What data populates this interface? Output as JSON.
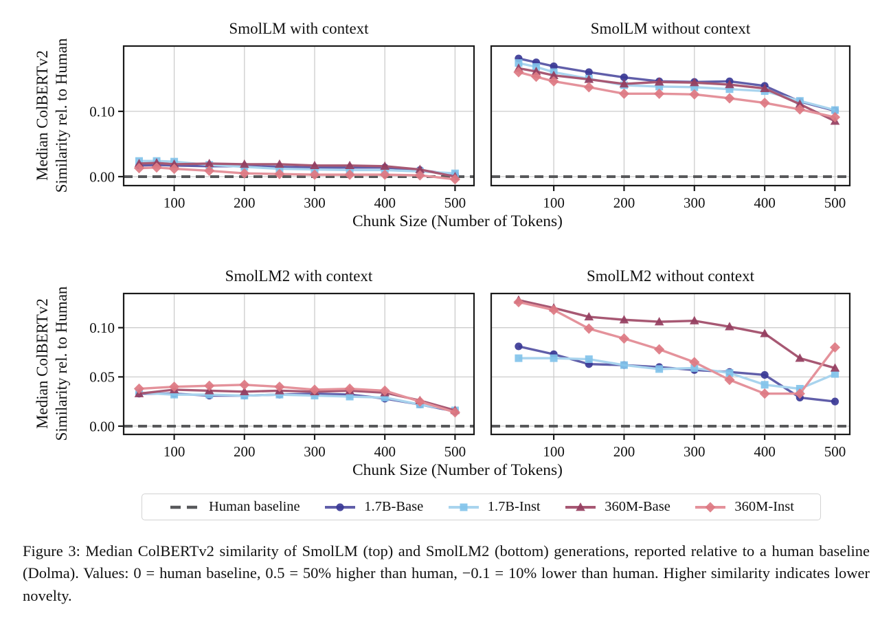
{
  "figure": {
    "caption": "Figure 3: Median ColBERTv2 similarity of SmolLM (top) and SmolLM2 (bottom) generations, reported relative to a human baseline (Dolma). Values: 0 = human baseline, 0.5 = 50% higher than human, −0.1 = 10% lower than human. Higher similarity indicates lower novelty."
  },
  "axes": {
    "ylabel_line1": "Median ColBERTv2",
    "ylabel_line2": "Similarity rel. to Human",
    "xlabel": "Chunk Size (Number of Tokens)"
  },
  "legend": {
    "items": [
      "Human baseline",
      "1.7B-Base",
      "1.7B-Inst",
      "360M-Base",
      "360M-Inst"
    ]
  },
  "styles": {
    "grid_color": "#cccccc",
    "border_color": "#1a1a1a",
    "baseline": {
      "color": "#58595b",
      "dash": "13 8",
      "width": 4
    },
    "series": {
      "1.7B-Base": {
        "line": "#605ea9",
        "marker_fill": "#3b3a96",
        "marker": "circle"
      },
      "1.7B-Inst": {
        "line": "#a9d4ee",
        "marker_fill": "#82c3ea",
        "marker": "square"
      },
      "360M-Base": {
        "line": "#a75873",
        "marker_fill": "#953e60",
        "marker": "triangle"
      },
      "360M-Inst": {
        "line": "#e4929b",
        "marker_fill": "#dd7983",
        "marker": "diamond"
      }
    }
  },
  "chart_data": [
    {
      "type": "line",
      "title": "SmolLM with context",
      "x": [
        50,
        75,
        100,
        150,
        200,
        250,
        300,
        350,
        400,
        450,
        500
      ],
      "series": [
        {
          "name": "1.7B-Base",
          "values": [
            0.017,
            0.018,
            0.017,
            0.016,
            0.016,
            0.015,
            0.014,
            0.014,
            0.014,
            0.01,
            0.003
          ]
        },
        {
          "name": "1.7B-Inst",
          "values": [
            0.024,
            0.024,
            0.023,
            0.018,
            0.015,
            0.012,
            0.011,
            0.01,
            0.01,
            0.008,
            0.005
          ]
        },
        {
          "name": "360M-Base",
          "values": [
            0.02,
            0.021,
            0.019,
            0.02,
            0.019,
            0.019,
            0.017,
            0.017,
            0.016,
            0.011,
            0.0
          ]
        },
        {
          "name": "360M-Inst",
          "values": [
            0.013,
            0.014,
            0.012,
            0.009,
            0.005,
            0.004,
            0.003,
            0.003,
            0.003,
            0.002,
            -0.004
          ]
        }
      ],
      "baseline": 0.0,
      "xlim": [
        28,
        527
      ],
      "ylim": [
        -0.0137,
        0.2
      ],
      "xticks": [
        100,
        200,
        300,
        400,
        500
      ],
      "xtick_labels": [
        "100",
        "200",
        "300",
        "400",
        "500"
      ],
      "yticks": [
        0.0,
        0.1
      ],
      "ytick_labels": [
        "0.00",
        "0.10"
      ],
      "show_ytick_labels": true,
      "grid": true,
      "legend_position": "below-figure"
    },
    {
      "type": "line",
      "title": "SmolLM without context",
      "x": [
        50,
        75,
        100,
        150,
        200,
        250,
        300,
        350,
        400,
        450,
        500
      ],
      "series": [
        {
          "name": "1.7B-Base",
          "values": [
            0.181,
            0.175,
            0.169,
            0.16,
            0.152,
            0.146,
            0.145,
            0.146,
            0.139,
            0.115,
            0.101
          ]
        },
        {
          "name": "1.7B-Inst",
          "values": [
            0.174,
            0.168,
            0.16,
            0.15,
            0.14,
            0.138,
            0.137,
            0.134,
            0.131,
            0.116,
            0.102
          ]
        },
        {
          "name": "360M-Base",
          "values": [
            0.166,
            0.161,
            0.155,
            0.149,
            0.142,
            0.145,
            0.144,
            0.141,
            0.135,
            0.111,
            0.085
          ]
        },
        {
          "name": "360M-Inst",
          "values": [
            0.16,
            0.153,
            0.146,
            0.137,
            0.127,
            0.127,
            0.126,
            0.12,
            0.113,
            0.103,
            0.091
          ]
        }
      ],
      "baseline": 0.0,
      "xlim": [
        11,
        521
      ],
      "ylim": [
        -0.0137,
        0.2
      ],
      "xticks": [
        100,
        200,
        300,
        400,
        500
      ],
      "xtick_labels": [
        "100",
        "200",
        "300",
        "400",
        "500"
      ],
      "yticks": [
        0.0,
        0.1
      ],
      "ytick_labels": [
        "0.00",
        "0.10"
      ],
      "show_ytick_labels": false,
      "grid": true
    },
    {
      "type": "line",
      "title": "SmolLM2 with context",
      "x": [
        50,
        100,
        150,
        200,
        250,
        300,
        350,
        400,
        450,
        500
      ],
      "series": [
        {
          "name": "1.7B-Base",
          "values": [
            0.033,
            0.033,
            0.031,
            0.031,
            0.032,
            0.033,
            0.032,
            0.028,
            0.022,
            0.015
          ]
        },
        {
          "name": "1.7B-Inst",
          "values": [
            0.034,
            0.032,
            0.032,
            0.031,
            0.032,
            0.031,
            0.03,
            0.029,
            0.022,
            0.016
          ]
        },
        {
          "name": "360M-Base",
          "values": [
            0.033,
            0.037,
            0.036,
            0.035,
            0.036,
            0.035,
            0.036,
            0.034,
            0.026,
            0.016
          ]
        },
        {
          "name": "360M-Inst",
          "values": [
            0.038,
            0.04,
            0.041,
            0.042,
            0.04,
            0.037,
            0.038,
            0.036,
            0.025,
            0.014
          ]
        }
      ],
      "baseline": 0.0,
      "xlim": [
        28,
        527
      ],
      "ylim": [
        -0.0084,
        0.1347
      ],
      "xticks": [
        100,
        200,
        300,
        400,
        500
      ],
      "xtick_labels": [
        "100",
        "200",
        "300",
        "400",
        "500"
      ],
      "yticks": [
        0.0,
        0.05,
        0.1
      ],
      "ytick_labels": [
        "0.00",
        "0.05",
        "0.10"
      ],
      "show_ytick_labels": true,
      "grid": true
    },
    {
      "type": "line",
      "title": "SmolLM2 without context",
      "x": [
        50,
        100,
        150,
        200,
        250,
        300,
        350,
        400,
        450,
        500
      ],
      "series": [
        {
          "name": "1.7B-Base",
          "values": [
            0.081,
            0.073,
            0.063,
            0.062,
            0.06,
            0.057,
            0.055,
            0.052,
            0.029,
            0.025
          ]
        },
        {
          "name": "1.7B-Inst",
          "values": [
            0.069,
            0.069,
            0.068,
            0.062,
            0.058,
            0.059,
            0.054,
            0.042,
            0.038,
            0.053
          ]
        },
        {
          "name": "360M-Base",
          "values": [
            0.128,
            0.12,
            0.111,
            0.108,
            0.106,
            0.107,
            0.101,
            0.094,
            0.069,
            0.059
          ]
        },
        {
          "name": "360M-Inst",
          "values": [
            0.126,
            0.118,
            0.099,
            0.089,
            0.078,
            0.065,
            0.047,
            0.033,
            0.033,
            0.08
          ]
        }
      ],
      "baseline": 0.0,
      "xlim": [
        11,
        521
      ],
      "ylim": [
        -0.0084,
        0.1347
      ],
      "xticks": [
        100,
        200,
        300,
        400,
        500
      ],
      "xtick_labels": [
        "100",
        "200",
        "300",
        "400",
        "500"
      ],
      "yticks": [
        0.0,
        0.05,
        0.1
      ],
      "ytick_labels": [
        "0.00",
        "0.05",
        "0.10"
      ],
      "show_ytick_labels": false,
      "grid": true
    }
  ]
}
